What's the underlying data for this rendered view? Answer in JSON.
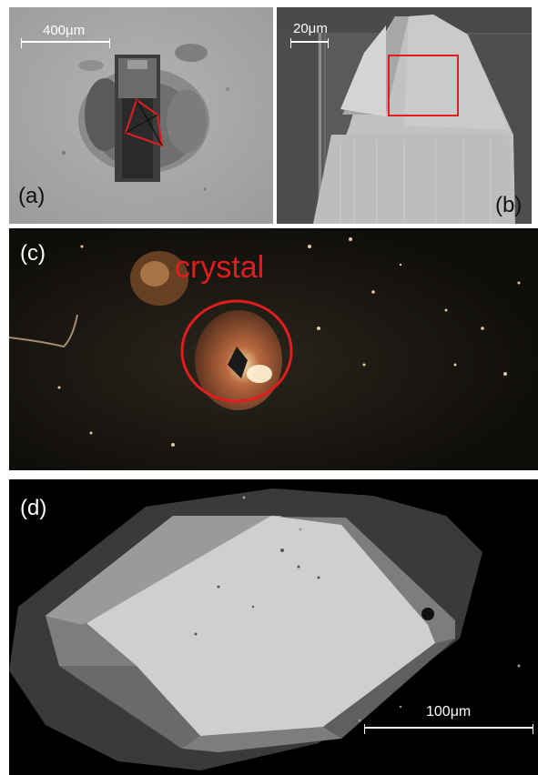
{
  "colors": {
    "annotation_red": "#e11d1d",
    "sem_gray": "#a6a6a6",
    "optical_dark": "#17140f"
  },
  "panels": {
    "a": {
      "letter": "(a)",
      "scale_label": "400μm"
    },
    "b": {
      "letter": "(b)",
      "scale_label": "20μm"
    },
    "c": {
      "letter": "(c)",
      "annotation": "crystal"
    },
    "d": {
      "letter": "(d)",
      "scale_label": "100μm"
    }
  }
}
